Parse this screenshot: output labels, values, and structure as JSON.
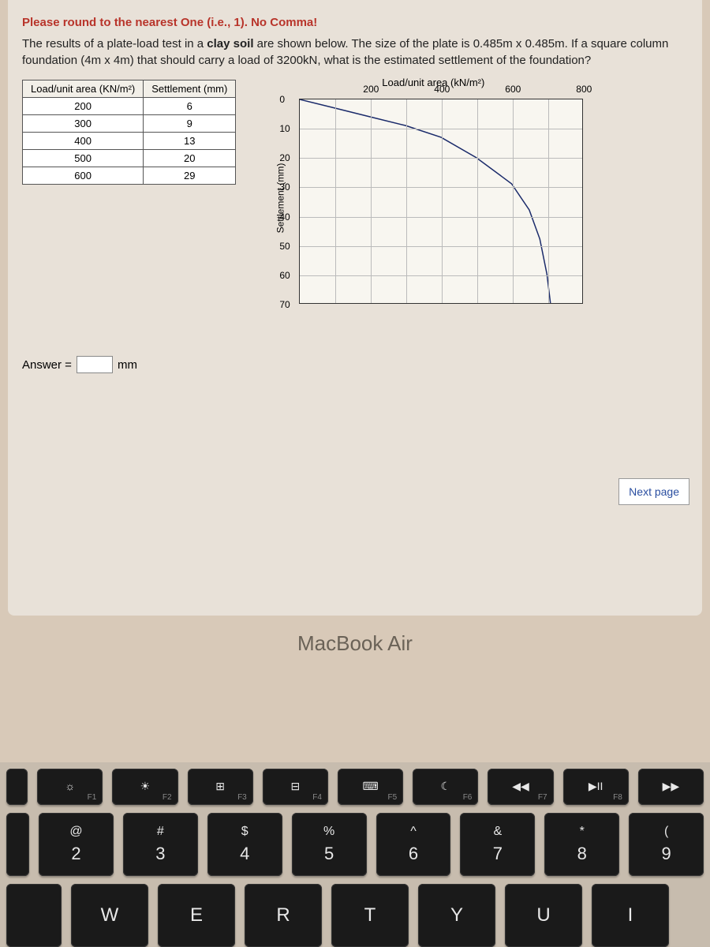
{
  "instruction": "Please round to the nearest One (i.e., 1). No Comma!",
  "body_text_pre": "The results of a plate-load test in a ",
  "body_text_clay": "clay soil",
  "body_text_post": " are shown below. The size of the plate is 0.485m x 0.485m. If a square column foundation (4m x 4m) that should carry a load of 3200kN, what is the estimated settlement of the foundation?",
  "table": {
    "header1": "Load/unit area (KN/m²)",
    "header2": "Settlement (mm)",
    "rows": [
      {
        "load": "200",
        "settle": "6"
      },
      {
        "load": "300",
        "settle": "9"
      },
      {
        "load": "400",
        "settle": "13"
      },
      {
        "load": "500",
        "settle": "20"
      },
      {
        "load": "600",
        "settle": "29"
      }
    ]
  },
  "chart": {
    "title": "Load/unit area (kN/m²)",
    "ylabel": "Settlement (mm)",
    "xticks": [
      "200",
      "400",
      "600",
      "800"
    ],
    "yticks": [
      "0",
      "10",
      "20",
      "30",
      "40",
      "50",
      "60",
      "70"
    ],
    "xlim": [
      0,
      800
    ],
    "ylim": [
      0,
      70
    ],
    "grid_x_step": 100,
    "grid_y_step": 10,
    "curve_color": "#1a2a6a",
    "grid_color": "#bbbbbb",
    "background_color": "#f8f6f0",
    "curve_points": [
      [
        0,
        0
      ],
      [
        100,
        3
      ],
      [
        200,
        6
      ],
      [
        300,
        9
      ],
      [
        400,
        13
      ],
      [
        500,
        20
      ],
      [
        600,
        29
      ],
      [
        650,
        38
      ],
      [
        680,
        48
      ],
      [
        700,
        60
      ],
      [
        710,
        70
      ]
    ]
  },
  "answer_label": "Answer =",
  "answer_unit": "mm",
  "next_label": "Next page",
  "mac_label": "MacBook Air",
  "keys": {
    "f": [
      {
        "icon": "☼",
        "lbl": "F1"
      },
      {
        "icon": "☀",
        "lbl": "F2"
      },
      {
        "icon": "⊞",
        "lbl": "F3"
      },
      {
        "icon": "⊟",
        "lbl": "F4"
      },
      {
        "icon": "⌨",
        "lbl": "F5"
      },
      {
        "icon": "☾",
        "lbl": "F6"
      },
      {
        "icon": "◀◀",
        "lbl": "F7"
      },
      {
        "icon": "▶II",
        "lbl": "F8"
      },
      {
        "icon": "▶▶",
        "lbl": ""
      }
    ],
    "num": [
      {
        "top": "@",
        "bot": "2"
      },
      {
        "top": "#",
        "bot": "3"
      },
      {
        "top": "$",
        "bot": "4"
      },
      {
        "top": "%",
        "bot": "5"
      },
      {
        "top": "^",
        "bot": "6"
      },
      {
        "top": "&",
        "bot": "7"
      },
      {
        "top": "*",
        "bot": "8"
      },
      {
        "top": "(",
        "bot": "9"
      }
    ],
    "let": [
      "W",
      "E",
      "R",
      "T",
      "Y",
      "U",
      "I"
    ]
  }
}
